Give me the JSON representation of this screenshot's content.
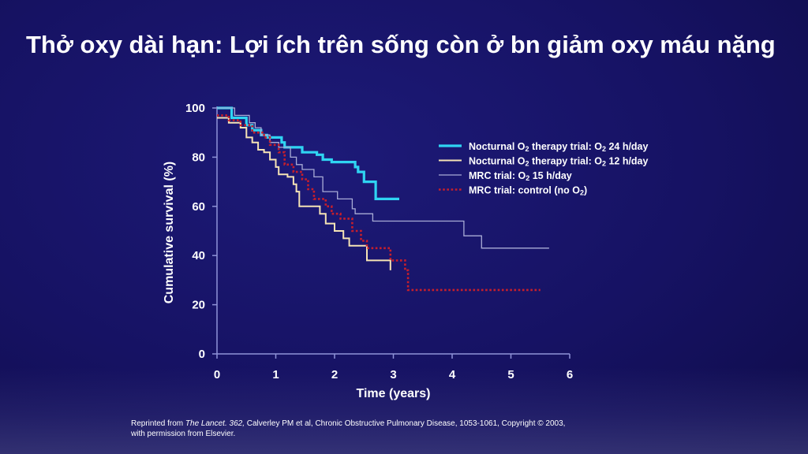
{
  "title": "Thở oxy dài hạn: Lợi ích trên sống còn ở bn giảm oxy máu nặng",
  "credit": {
    "prefix": "Reprinted from ",
    "journal": "The Lancet. 362,",
    "rest": " Calverley PM et al, Chronic Obstructive Pulmonary Disease, 1053-1061, Copyright © 2003,",
    "line2": "with permission from Elsevier."
  },
  "chart_data": {
    "type": "line",
    "xlabel": "Time (years)",
    "ylabel": "Cumulative survival (%)",
    "xlim": [
      0,
      6
    ],
    "ylim": [
      0,
      100
    ],
    "xticks": [
      "0",
      "1",
      "2",
      "3",
      "4",
      "5",
      "6"
    ],
    "yticks": [
      "0",
      "20",
      "40",
      "60",
      "80",
      "100"
    ],
    "grid": false,
    "legend_position": "top-right",
    "series": [
      {
        "name": "Nocturnal O2 therapy trial: O2 24 h/day",
        "label_parts": [
          "Nocturnal O",
          "2",
          " therapy trial: O",
          "2",
          " 24 h/day"
        ],
        "color": "#2fd4f2",
        "style": "solid",
        "width": 3.2,
        "points": [
          [
            0,
            100
          ],
          [
            0.25,
            96
          ],
          [
            0.5,
            93
          ],
          [
            0.6,
            91
          ],
          [
            0.75,
            89
          ],
          [
            0.85,
            88
          ],
          [
            1.1,
            86
          ],
          [
            1.15,
            84
          ],
          [
            1.45,
            82
          ],
          [
            1.7,
            81
          ],
          [
            1.8,
            79
          ],
          [
            1.95,
            78
          ],
          [
            2.35,
            76
          ],
          [
            2.4,
            74
          ],
          [
            2.5,
            70
          ],
          [
            2.7,
            63
          ],
          [
            3.1,
            63
          ]
        ]
      },
      {
        "name": "Nocturnal O2 therapy trial: O2 12 h/day",
        "label_parts": [
          "Nocturnal O",
          "2",
          " therapy trial: O",
          "2",
          " 12 h/day"
        ],
        "color": "#f5e3b5",
        "style": "solid",
        "width": 2,
        "points": [
          [
            0,
            96
          ],
          [
            0.2,
            94
          ],
          [
            0.4,
            92
          ],
          [
            0.5,
            88
          ],
          [
            0.6,
            86
          ],
          [
            0.7,
            83
          ],
          [
            0.8,
            82
          ],
          [
            0.9,
            79
          ],
          [
            1.0,
            76
          ],
          [
            1.05,
            73
          ],
          [
            1.2,
            72
          ],
          [
            1.3,
            69
          ],
          [
            1.35,
            66
          ],
          [
            1.4,
            60
          ],
          [
            1.75,
            57
          ],
          [
            1.85,
            53
          ],
          [
            2.0,
            50
          ],
          [
            2.15,
            47
          ],
          [
            2.25,
            44
          ],
          [
            2.55,
            38
          ],
          [
            2.95,
            34
          ]
        ]
      },
      {
        "name": "MRC trial: O2 15 h/day",
        "label_parts": [
          "MRC trial: O",
          "2",
          " 15 h/day"
        ],
        "color": "#a9acd6",
        "style": "solid",
        "width": 1.3,
        "points": [
          [
            0,
            100
          ],
          [
            0.3,
            97
          ],
          [
            0.55,
            94
          ],
          [
            0.65,
            92
          ],
          [
            0.75,
            89
          ],
          [
            0.9,
            86
          ],
          [
            1.05,
            84
          ],
          [
            1.25,
            80
          ],
          [
            1.35,
            77
          ],
          [
            1.45,
            75
          ],
          [
            1.65,
            72
          ],
          [
            1.8,
            66
          ],
          [
            2.05,
            63
          ],
          [
            2.3,
            59
          ],
          [
            2.35,
            57
          ],
          [
            2.65,
            54
          ],
          [
            4.2,
            48
          ],
          [
            4.5,
            43
          ],
          [
            5.65,
            43
          ]
        ]
      },
      {
        "name": "MRC trial: control (no O2)",
        "label_parts": [
          "MRC trial: control (no O",
          "2",
          ")"
        ],
        "color": "#c71f2b",
        "style": "dotted",
        "width": 2.6,
        "points": [
          [
            0,
            97
          ],
          [
            0.2,
            95
          ],
          [
            0.4,
            93
          ],
          [
            0.6,
            90
          ],
          [
            0.8,
            88
          ],
          [
            0.9,
            85
          ],
          [
            1.05,
            82
          ],
          [
            1.15,
            77
          ],
          [
            1.3,
            74
          ],
          [
            1.45,
            71
          ],
          [
            1.55,
            67
          ],
          [
            1.65,
            63
          ],
          [
            1.85,
            60
          ],
          [
            1.95,
            57
          ],
          [
            2.1,
            55
          ],
          [
            2.3,
            50
          ],
          [
            2.45,
            46
          ],
          [
            2.55,
            43
          ],
          [
            2.95,
            38
          ],
          [
            3.2,
            34
          ],
          [
            3.25,
            26
          ],
          [
            5.5,
            26
          ]
        ]
      }
    ]
  }
}
